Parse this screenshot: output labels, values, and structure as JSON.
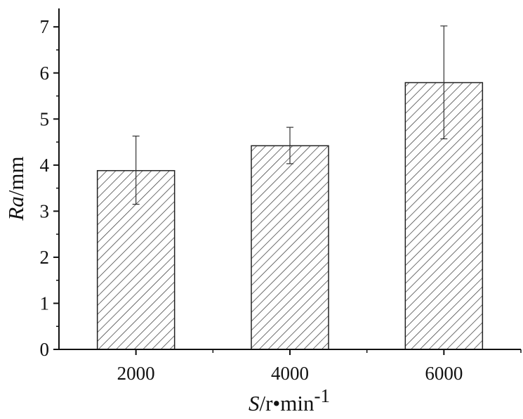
{
  "chart_data": {
    "type": "bar",
    "title": "",
    "categories": [
      "2000",
      "4000",
      "6000"
    ],
    "values": [
      3.88,
      4.42,
      5.79
    ],
    "error_bars": {
      "upper": [
        4.63,
        4.82,
        7.02
      ],
      "lower": [
        3.15,
        4.03,
        4.57
      ]
    },
    "xlabel": {
      "variable": "S",
      "units": "/r",
      "dot": "•",
      "units_rest": "min",
      "exponent": "-1"
    },
    "ylabel": {
      "variable": "Ra",
      "units": "/mm"
    },
    "ylim": [
      0,
      7.4
    ],
    "yticks": [
      0,
      1,
      2,
      3,
      4,
      5,
      6,
      7
    ],
    "grid": false,
    "legend": "none",
    "bar_fill": "hatched",
    "colors": {
      "axis": "#111111",
      "bar_stroke": "#222222",
      "hatch": "#333333",
      "error_bar": "#333333"
    }
  }
}
